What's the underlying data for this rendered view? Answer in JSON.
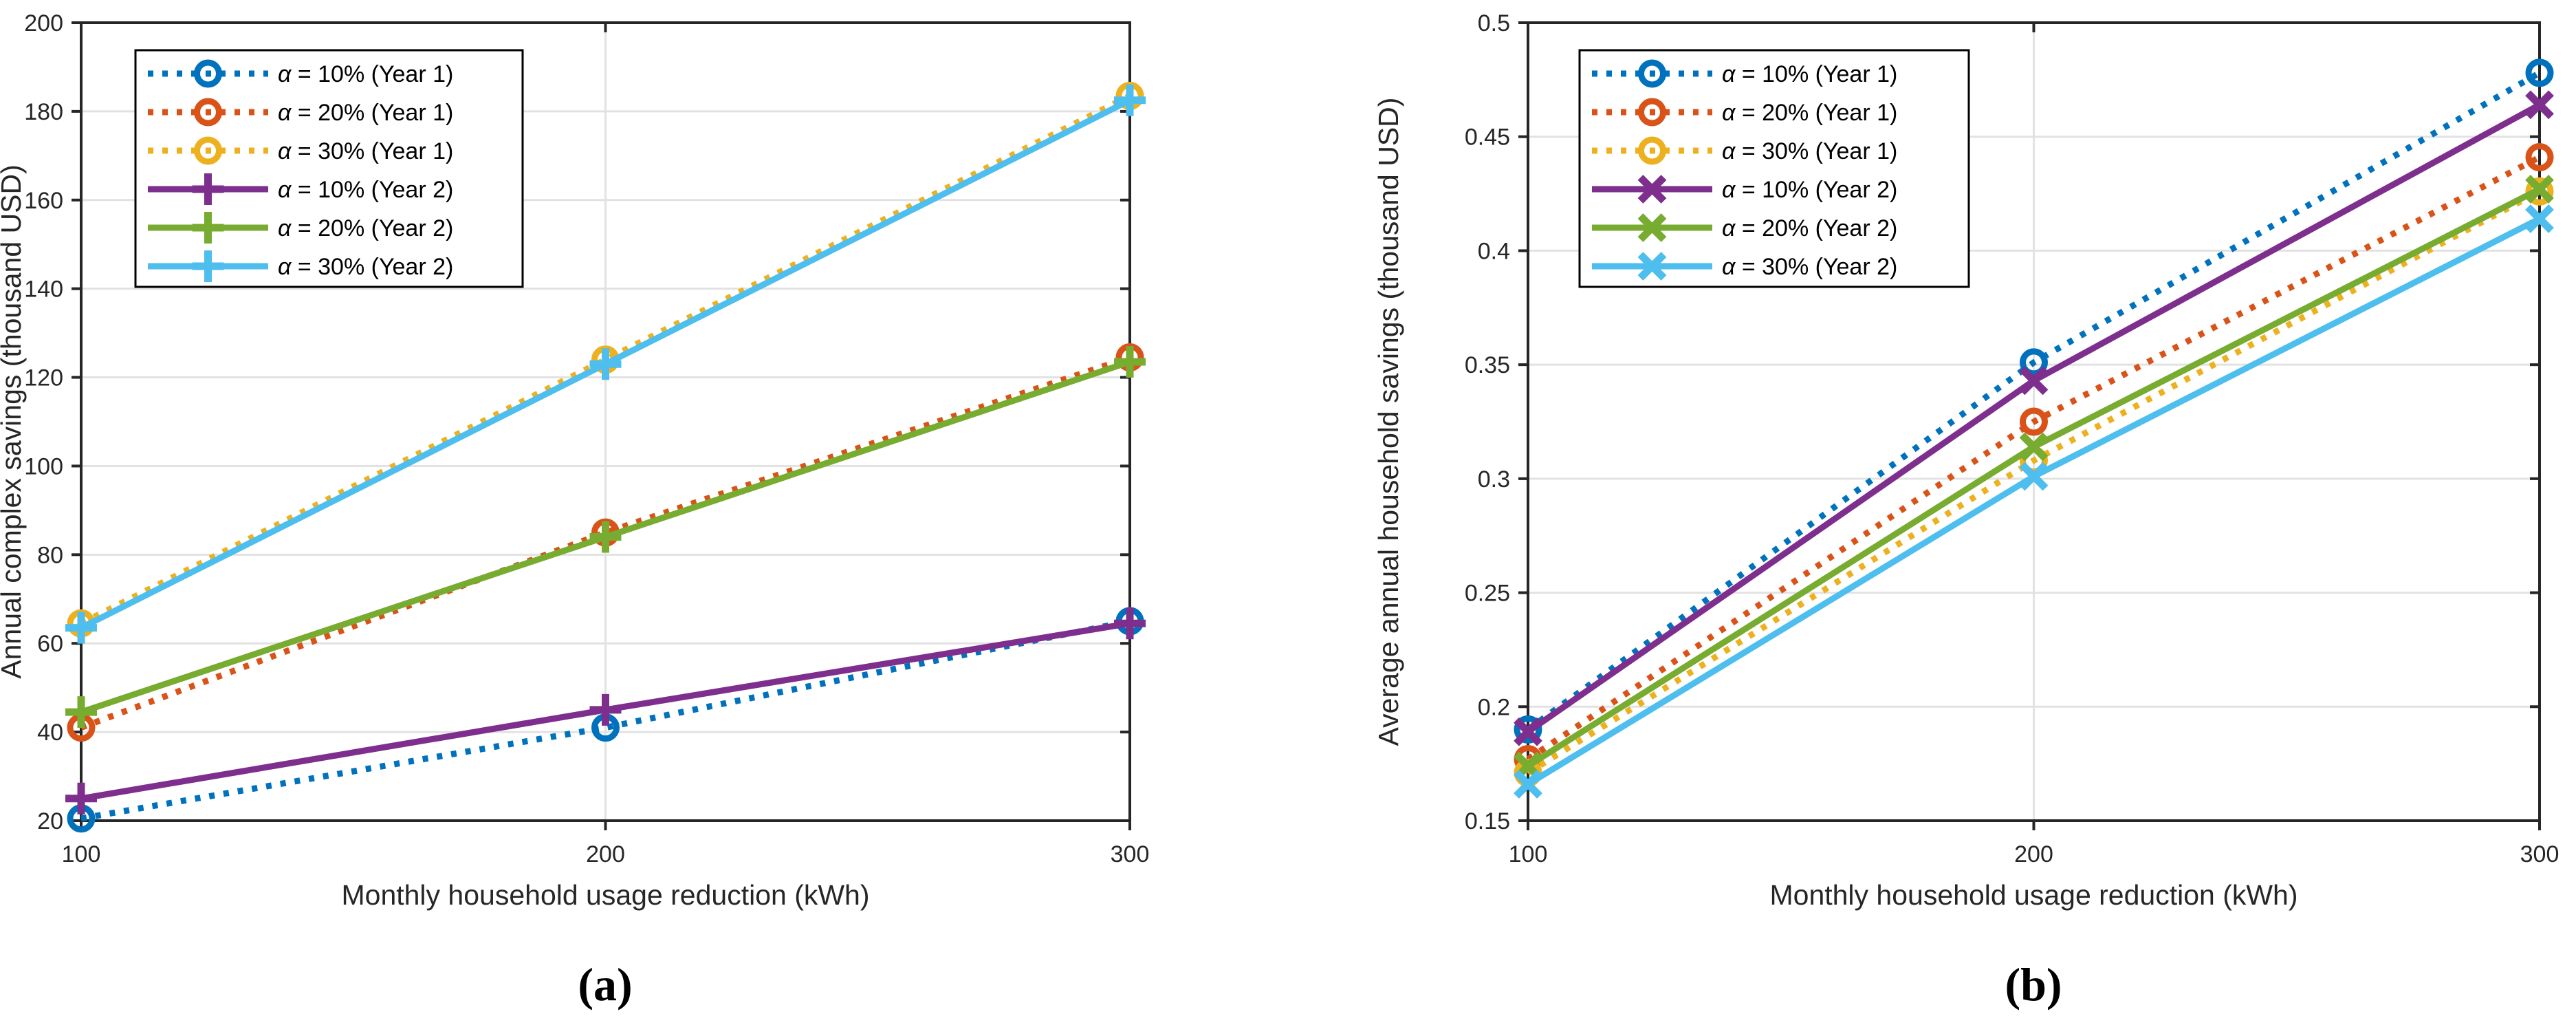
{
  "figure": {
    "background": "#ffffff",
    "axis_color": "#262626",
    "grid_color": "#e2e2e2",
    "captions": {
      "a": "(a)",
      "b": "(b)"
    }
  },
  "chart_data": [
    {
      "id": "a",
      "type": "line",
      "caption": "(a)",
      "xlabel": "Monthly household usage reduction (kWh)",
      "ylabel": "Annual complex savings (thousand USD)",
      "xlim": [
        100,
        300
      ],
      "ylim": [
        20,
        200
      ],
      "grid": true,
      "legend_position": "top-left",
      "xticks": [
        {
          "v": 100,
          "label": "100"
        },
        {
          "v": 200,
          "label": "200"
        },
        {
          "v": 300,
          "label": "300"
        }
      ],
      "yticks": [
        {
          "v": 20,
          "label": "20"
        },
        {
          "v": 40,
          "label": "40"
        },
        {
          "v": 60,
          "label": "60"
        },
        {
          "v": 80,
          "label": "80"
        },
        {
          "v": 100,
          "label": "100"
        },
        {
          "v": 120,
          "label": "120"
        },
        {
          "v": 140,
          "label": "140"
        },
        {
          "v": 160,
          "label": "160"
        },
        {
          "v": 180,
          "label": "180"
        },
        {
          "v": 200,
          "label": "200"
        }
      ],
      "x": [
        100,
        200,
        300
      ],
      "series": [
        {
          "name": "α = 10% (Year 1)",
          "color": "#0072BD",
          "line": "dotted",
          "marker": "circle",
          "values": [
            20.5,
            41,
            65
          ]
        },
        {
          "name": "α = 20% (Year 1)",
          "color": "#D95319",
          "line": "dotted",
          "marker": "circle",
          "values": [
            41,
            85,
            124.5
          ]
        },
        {
          "name": "α = 30% (Year 1)",
          "color": "#EDB120",
          "line": "dotted",
          "marker": "circle",
          "values": [
            64.5,
            124,
            183.5
          ]
        },
        {
          "name": "α = 10% (Year 2)",
          "color": "#7E2F8E",
          "line": "solid",
          "marker": "plus",
          "values": [
            25,
            45,
            64.5
          ]
        },
        {
          "name": "α = 20% (Year 2)",
          "color": "#77AC30",
          "line": "solid",
          "marker": "plus",
          "values": [
            44.5,
            84,
            123.5
          ]
        },
        {
          "name": "α = 30% (Year 2)",
          "color": "#4DBEEE",
          "line": "solid",
          "marker": "plus",
          "values": [
            63.5,
            123,
            182.5
          ]
        }
      ]
    },
    {
      "id": "b",
      "type": "line",
      "caption": "(b)",
      "xlabel": "Monthly household usage reduction (kWh)",
      "ylabel": "Average annual household savings (thousand USD)",
      "xlim": [
        100,
        300
      ],
      "ylim": [
        0.15,
        0.5
      ],
      "grid": true,
      "legend_position": "top-left",
      "xticks": [
        {
          "v": 100,
          "label": "100"
        },
        {
          "v": 200,
          "label": "200"
        },
        {
          "v": 300,
          "label": "300"
        }
      ],
      "yticks": [
        {
          "v": 0.15,
          "label": "0.15"
        },
        {
          "v": 0.2,
          "label": "0.2"
        },
        {
          "v": 0.25,
          "label": "0.25"
        },
        {
          "v": 0.3,
          "label": "0.3"
        },
        {
          "v": 0.35,
          "label": "0.35"
        },
        {
          "v": 0.4,
          "label": "0.4"
        },
        {
          "v": 0.45,
          "label": "0.45"
        },
        {
          "v": 0.5,
          "label": "0.5"
        }
      ],
      "x": [
        100,
        200,
        300
      ],
      "series": [
        {
          "name": "α = 10% (Year 1)",
          "color": "#0072BD",
          "line": "dotted",
          "marker": "circle",
          "values": [
            0.19,
            0.351,
            0.478
          ]
        },
        {
          "name": "α = 20% (Year 1)",
          "color": "#D95319",
          "line": "dotted",
          "marker": "circle",
          "values": [
            0.177,
            0.325,
            0.441
          ]
        },
        {
          "name": "α = 30% (Year 1)",
          "color": "#EDB120",
          "line": "dotted",
          "marker": "circle",
          "values": [
            0.171,
            0.308,
            0.426
          ]
        },
        {
          "name": "α = 10% (Year 2)",
          "color": "#7E2F8E",
          "line": "solid",
          "marker": "x",
          "values": [
            0.189,
            0.343,
            0.464
          ]
        },
        {
          "name": "α = 20% (Year 2)",
          "color": "#77AC30",
          "line": "solid",
          "marker": "x",
          "values": [
            0.174,
            0.314,
            0.427
          ]
        },
        {
          "name": "α = 30% (Year 2)",
          "color": "#4DBEEE",
          "line": "solid",
          "marker": "x",
          "values": [
            0.166,
            0.301,
            0.414
          ]
        }
      ]
    }
  ]
}
